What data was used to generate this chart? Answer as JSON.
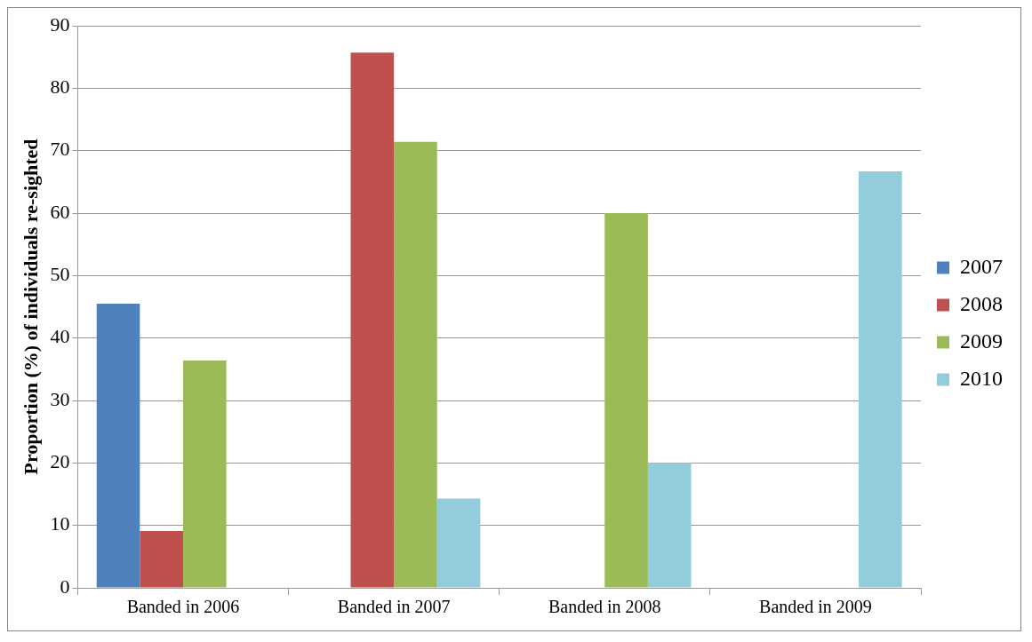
{
  "chart_data": {
    "type": "bar",
    "ylabel": "Proportion (%) of individuals re-sighted",
    "categories": [
      "Banded in 2006",
      "Banded in 2007",
      "Banded in 2008",
      "Banded in 2009"
    ],
    "series": [
      {
        "name": "2007",
        "color": "#4f81bd",
        "values": [
          45.5,
          null,
          null,
          null
        ]
      },
      {
        "name": "2008",
        "color": "#c0504d",
        "values": [
          9.1,
          85.7,
          null,
          null
        ]
      },
      {
        "name": "2009",
        "color": "#9bbb59",
        "values": [
          36.4,
          71.4,
          60,
          null
        ]
      },
      {
        "name": "2010",
        "color": "#93cddd",
        "values": [
          null,
          14.3,
          20,
          66.7
        ]
      }
    ],
    "ylim": [
      0,
      90
    ],
    "yticks": [
      0,
      10,
      20,
      30,
      40,
      50,
      60,
      70,
      80,
      90
    ],
    "grid": "y",
    "legend": "right"
  }
}
